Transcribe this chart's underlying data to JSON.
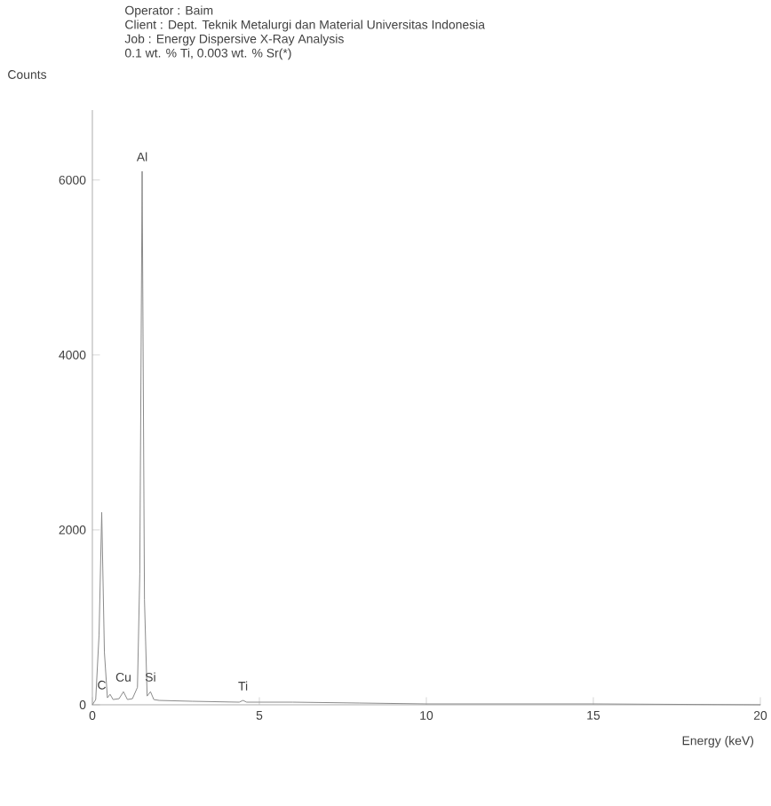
{
  "chart_data": {
    "type": "line",
    "title": "Operator : Baim",
    "subtitle": "Client : Dept. Teknik Metalurgi dan Material Universitas Indonesia",
    "xlabel": "Energy (keV)",
    "ylabel": "Counts",
    "x": [
      0,
      0.1,
      0.2,
      0.28,
      0.36,
      0.45,
      0.53,
      0.62,
      0.8,
      0.93,
      1.05,
      1.2,
      1.35,
      1.42,
      1.49,
      1.56,
      1.64,
      1.74,
      1.84,
      2.0,
      3.0,
      4.4,
      4.51,
      4.62,
      6.0,
      8.0,
      10.0,
      15.0,
      20.0
    ],
    "series": [
      {
        "color": "#8a8a8a",
        "values": [
          0,
          60,
          800,
          2200,
          600,
          80,
          120,
          60,
          70,
          150,
          60,
          70,
          200,
          1500,
          6100,
          1200,
          100,
          150,
          60,
          50,
          40,
          30,
          50,
          30,
          30,
          20,
          10,
          10,
          0
        ]
      }
    ],
    "xlim": [
      0,
      20
    ],
    "ylim": [
      0,
      6800
    ],
    "xticks": [
      0,
      5,
      10,
      15,
      20
    ],
    "yticks": [
      0,
      2000,
      4000,
      6000
    ],
    "grid": false,
    "marker": "none",
    "line_style": "solid",
    "annotations": [
      "Job : Energy Dispersive X-Ray Analysis",
      "0.1 wt. % Ti, 0.003 wt. % Sr(*)",
      {
        "text": "Al",
        "x": 1.49,
        "y": 6100
      },
      {
        "text": "C",
        "x": 0.28,
        "y": 60
      },
      {
        "text": "Cu",
        "x": 0.93,
        "y": 150
      },
      {
        "text": "Si",
        "x": 1.74,
        "y": 150
      },
      {
        "text": "Ti",
        "x": 4.51,
        "y": 50
      }
    ]
  }
}
